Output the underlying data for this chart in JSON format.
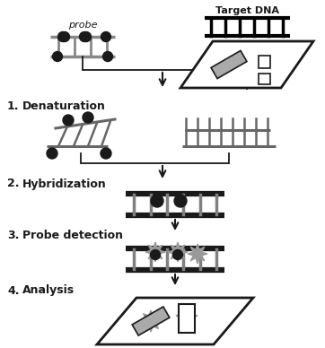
{
  "background_color": "#ffffff",
  "figsize": [
    3.62,
    3.88
  ],
  "dpi": 100,
  "colors": {
    "black": "#000000",
    "dark": "#1a1a1a",
    "gray": "#808080",
    "mid_gray": "#666666",
    "light_gray": "#aaaaaa",
    "star_gray": "#999999",
    "white": "#ffffff"
  },
  "layout": {
    "xlim": [
      0,
      362
    ],
    "ylim": [
      0,
      388
    ]
  }
}
